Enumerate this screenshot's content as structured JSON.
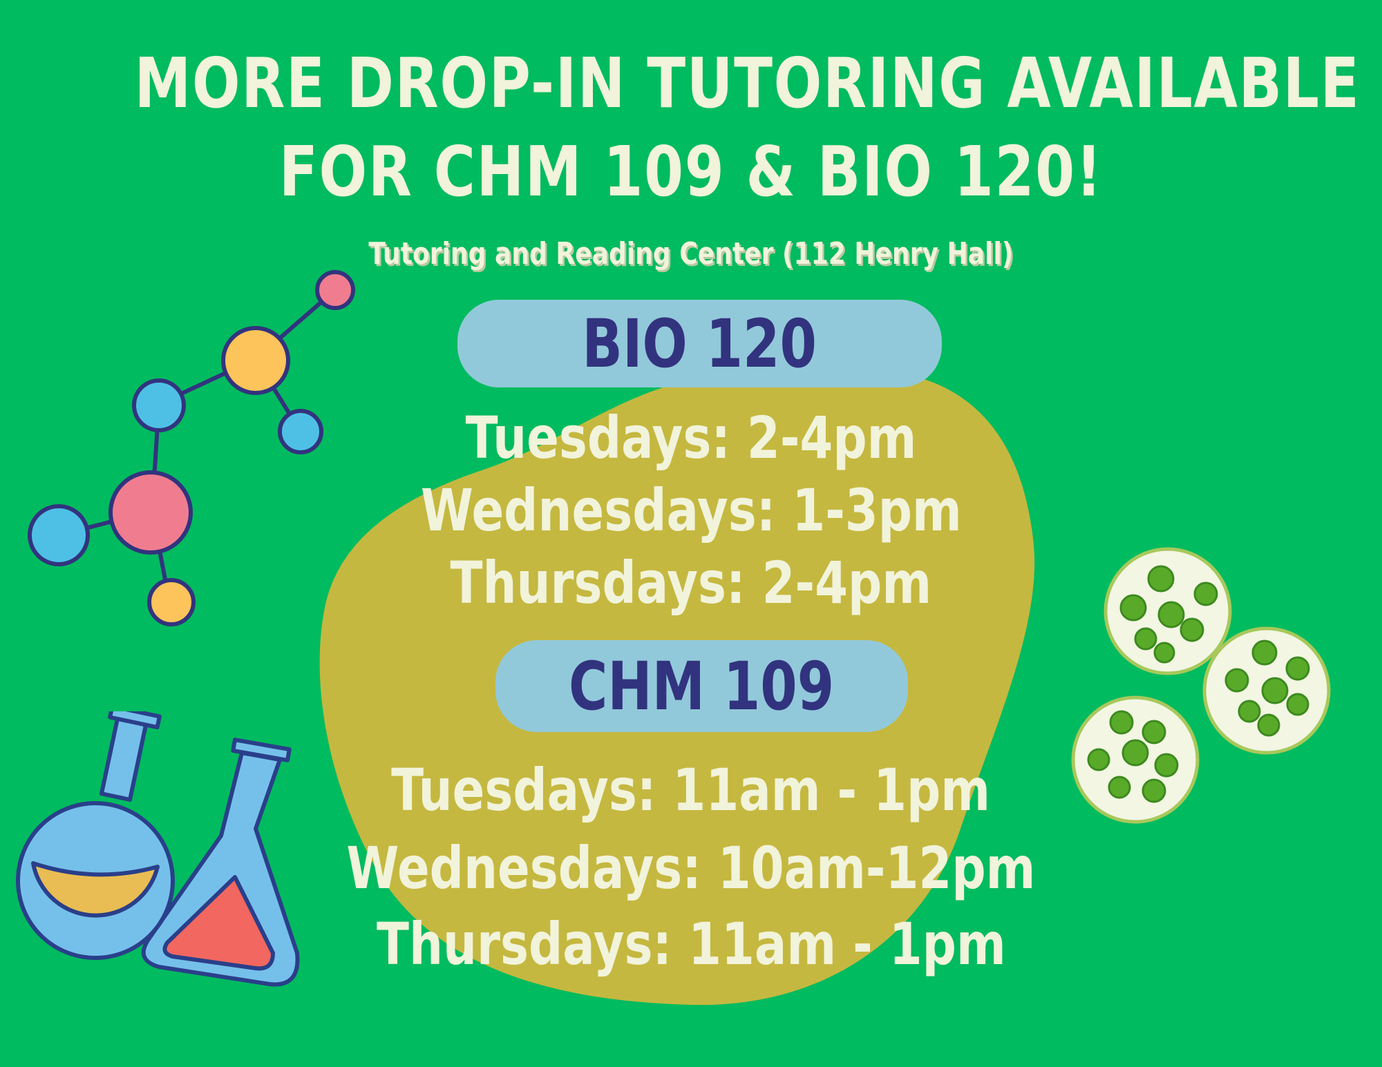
{
  "title": {
    "line1": "MORE DROP-IN TUTORING AVAILABLE",
    "line2": "FOR CHM 109 & BIO 120!"
  },
  "location": "Tutoring and Reading Center (112 Henry Hall)",
  "sections": [
    {
      "course": "BIO 120",
      "times": [
        "Tuesdays: 2-4pm",
        "Wednesdays: 1-3pm",
        "Thursdays: 2-4pm"
      ]
    },
    {
      "course": "CHM 109",
      "times": [
        "Tuesdays: 11am - 1pm",
        "Wednesdays: 10am-12pm",
        "Thursdays: 11am - 1pm"
      ]
    }
  ],
  "colors": {
    "background": "#00BB5F",
    "text": "#F1F3DB",
    "blob": "#C5B840",
    "pill": "#92C9DA",
    "pill_text": "#32337E"
  },
  "icons": [
    "molecule-icon",
    "flasks-icon",
    "cells-icon"
  ]
}
